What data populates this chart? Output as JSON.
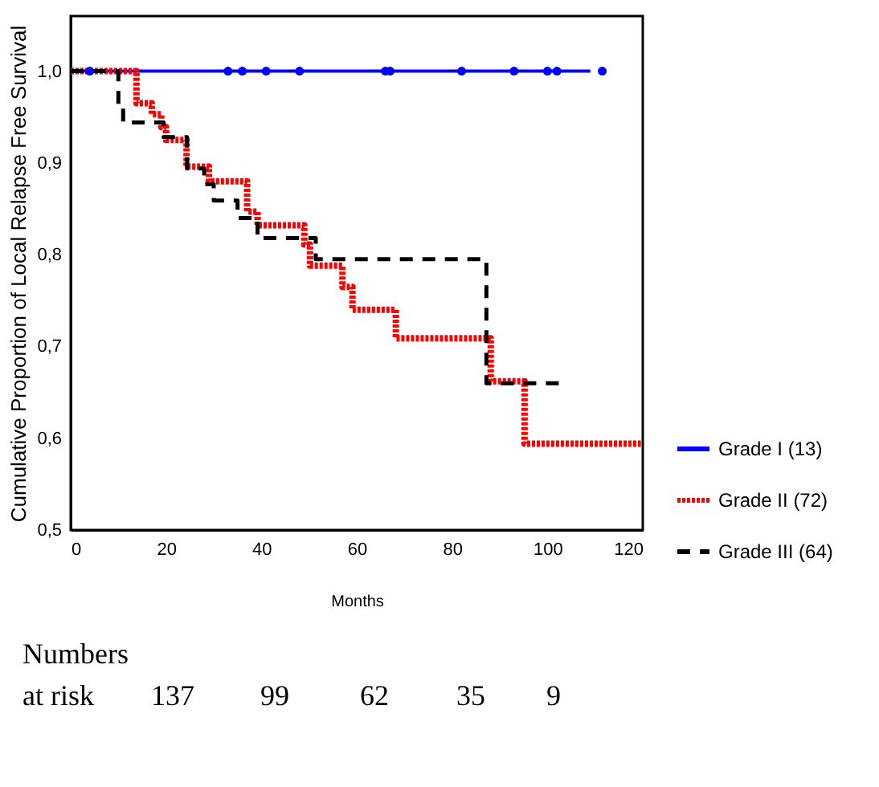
{
  "chart_data": {
    "type": "step",
    "xlabel": "Months",
    "ylabel": "Cumulative Proportion of Local Relapse Free Survival",
    "xlim": [
      0,
      120
    ],
    "xticks": [
      0,
      20,
      40,
      60,
      80,
      100,
      120
    ],
    "ylim": [
      0.5,
      1.06
    ],
    "yticks": [
      {
        "value": 0.5,
        "label": "0,5"
      },
      {
        "value": 0.6,
        "label": "0,6"
      },
      {
        "value": 0.7,
        "label": "0,7"
      },
      {
        "value": 0.8,
        "label": "0,8"
      },
      {
        "value": 0.9,
        "label": "0,9"
      },
      {
        "value": 1.0,
        "label": "1,0"
      }
    ],
    "grid": false,
    "legend": "bottom right",
    "series": [
      {
        "name": "Grade I (13)",
        "color": "#0000ff",
        "line_style": "solid",
        "x": [
          0,
          109
        ],
        "values": [
          1.0,
          1.0
        ]
      },
      {
        "name": "Grade II (72)",
        "color": "#ff0000",
        "line_style": "dotted",
        "x": [
          0,
          13.8,
          17,
          19,
          20,
          24.3,
          29,
          37,
          39.2,
          49,
          50.2,
          57,
          59.1,
          68.2,
          88.1,
          95.2,
          119.6
        ],
        "values": [
          1.0,
          0.965,
          0.953,
          0.939,
          0.925,
          0.896,
          0.88,
          0.847,
          0.832,
          0.811,
          0.788,
          0.765,
          0.74,
          0.709,
          0.662,
          0.594,
          0.594
        ]
      },
      {
        "name": "Grade III (64)",
        "color": "#000000",
        "line_style": "dashed",
        "x": [
          0,
          10,
          11,
          19.5,
          24.4,
          28,
          30,
          35,
          39.2,
          51.4,
          87.2,
          103.3
        ],
        "values": [
          1.0,
          0.962,
          0.944,
          0.928,
          0.894,
          0.877,
          0.859,
          0.84,
          0.818,
          0.795,
          0.66,
          0.66
        ]
      },
      {
        "type": "scatter",
        "marker": "circle",
        "color": "#0000ff",
        "x": [
          4,
          33,
          36,
          41,
          48,
          66,
          67,
          82,
          93,
          100,
          102,
          111.5
        ],
        "values": [
          1.0,
          1.0,
          1.0,
          1.0,
          1.0,
          1.0,
          1.0,
          1.0,
          1.0,
          1.0,
          1.0,
          1.0
        ]
      }
    ],
    "annotations": [
      "Numbers",
      "at risk",
      "137",
      "99",
      "62",
      "35",
      "9"
    ]
  }
}
